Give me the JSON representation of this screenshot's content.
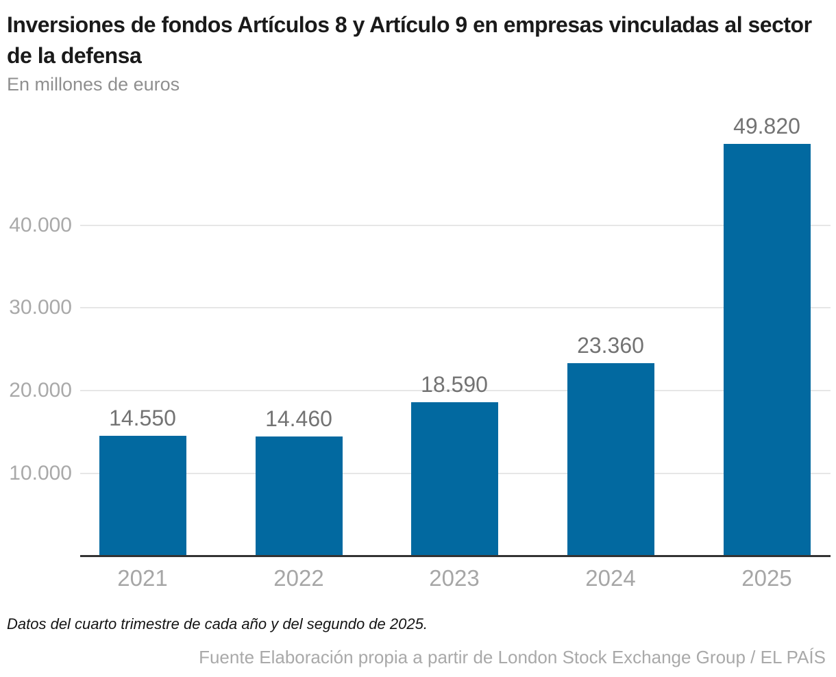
{
  "header": {
    "title": "Inversiones de fondos Artículos 8 y Artículo 9 en empresas vinculadas al sector de la defensa",
    "subtitle": "En millones de euros"
  },
  "chart_data": {
    "type": "bar",
    "title": "Inversiones de fondos Artículos 8 y Artículo 9 en empresas vinculadas al sector de la defensa",
    "subtitle": "En millones de euros",
    "unit": "millones de euros",
    "categories": [
      "2021",
      "2022",
      "2023",
      "2024",
      "2025"
    ],
    "values": [
      14550,
      14460,
      18590,
      23360,
      49820
    ],
    "value_labels": [
      "14.550",
      "14.460",
      "18.590",
      "23.360",
      "49.820"
    ],
    "xlabel": "",
    "ylabel": "En millones de euros",
    "ylim": [
      0,
      50000
    ],
    "y_ticks": [
      {
        "value": 10000,
        "label": "10.000"
      },
      {
        "value": 20000,
        "label": "20.000"
      },
      {
        "value": 30000,
        "label": "30.000"
      },
      {
        "value": 40000,
        "label": "40.000"
      }
    ],
    "grid": true,
    "legend": "none",
    "bar_color": "#0269a0"
  },
  "footer": {
    "note": "Datos del cuarto trimestre de cada año y del segundo de 2025.",
    "source": "Fuente Elaboración propia a partir de London Stock Exchange Group / EL PAÍS"
  },
  "colors": {
    "bar": "#0269a0",
    "title_text": "#1a1a1a",
    "subtitle_text": "#8f8f8f",
    "tick_text": "#a9a9a9",
    "value_text": "#737373",
    "gridline": "#e6e6e6",
    "axis_line": "#333333",
    "background": "#ffffff"
  }
}
